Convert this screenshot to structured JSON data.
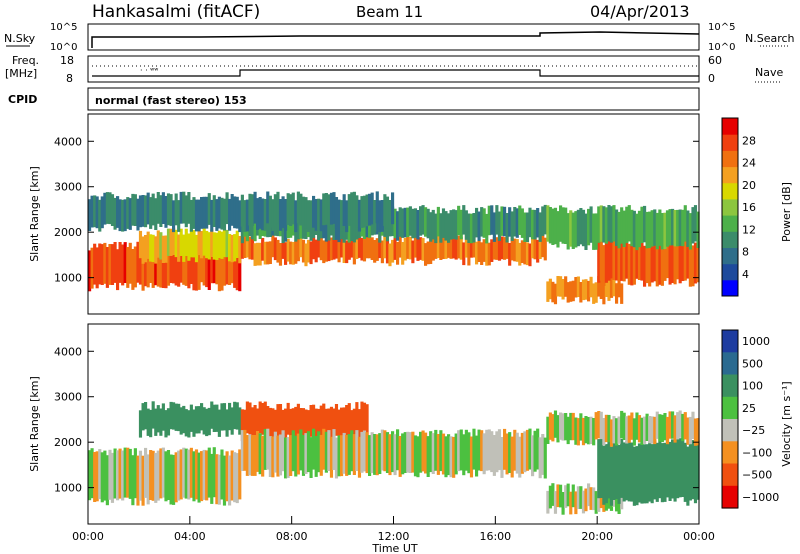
{
  "header": {
    "station": "Hankasalmi (fitACF)",
    "beam": "Beam 11",
    "date": "04/Apr/2013"
  },
  "top_panel": {
    "nsky_label": "N.Sky",
    "nsky_ticks": [
      "10^5",
      "10^0"
    ],
    "nsearch_label": "N.Search",
    "nsearch_ticks": [
      "10^5",
      "10^0"
    ],
    "freq_label_1": "Freq.",
    "freq_label_2": "[MHz]",
    "freq_ticks": [
      "18",
      "8"
    ],
    "nave_label": "Nave",
    "nave_ticks": [
      "60",
      "0"
    ],
    "cpid_label": "CPID",
    "cpid_value": "normal (fast stereo) 153"
  },
  "colors": {
    "power": [
      "#0000ff",
      "#1e4a9c",
      "#2f6e8a",
      "#3b8c6a",
      "#4db04a",
      "#8cc63f",
      "#d8d800",
      "#f4a020",
      "#f07010",
      "#f04010",
      "#e60000"
    ],
    "velocity": [
      "#e60000",
      "#f05010",
      "#f49020",
      "#c0c0b8",
      "#4cc040",
      "#3a9060",
      "#2a6a90",
      "#1e3ca0"
    ]
  },
  "chart_data": [
    {
      "type": "heatmap",
      "name": "Power",
      "ylabel": "Slant Range [km]",
      "yticks": [
        "4000",
        "3000",
        "2000",
        "1000"
      ],
      "ylim": [
        200,
        4600
      ],
      "xlim": [
        0,
        24
      ],
      "colorbar_label": "Power [dB]",
      "colorbar_ticks": [
        "28",
        "24",
        "20",
        "16",
        "12",
        "8",
        "4"
      ],
      "colorbar_range": [
        0,
        32
      ],
      "bands": [
        {
          "x": [
            0,
            6
          ],
          "range": [
            800,
            1700
          ],
          "level": 28
        },
        {
          "x": [
            2,
            6
          ],
          "range": [
            1400,
            2000
          ],
          "level": 20
        },
        {
          "x": [
            6,
            18
          ],
          "range": [
            1350,
            1850
          ],
          "level": 26
        },
        {
          "x": [
            6,
            18
          ],
          "range": [
            1850,
            2500
          ],
          "level": 10
        },
        {
          "x": [
            0,
            12
          ],
          "range": [
            2100,
            2800
          ],
          "level": 8
        },
        {
          "x": [
            18,
            21
          ],
          "range": [
            500,
            950
          ],
          "level": 24
        },
        {
          "x": [
            20,
            24
          ],
          "range": [
            900,
            1800
          ],
          "level": 27
        },
        {
          "x": [
            18,
            24
          ],
          "range": [
            1700,
            2500
          ],
          "level": 12
        }
      ]
    },
    {
      "type": "heatmap",
      "name": "Velocity",
      "ylabel": "Slant Range [km]",
      "yticks": [
        "4000",
        "3000",
        "2000",
        "1000"
      ],
      "ylim": [
        200,
        4600
      ],
      "xlim": [
        0,
        24
      ],
      "xticks": [
        "00:00",
        "04:00",
        "08:00",
        "12:00",
        "16:00",
        "20:00",
        "00:00"
      ],
      "xlabel": "Time UT",
      "colorbar_label": "Velocity [m s⁻¹]",
      "colorbar_ticks": [
        "1000",
        "500",
        "100",
        "25",
        "−25",
        "−100",
        "−500",
        "−1000"
      ],
      "bands": [
        {
          "x": [
            0,
            6
          ],
          "range": [
            700,
            1800
          ],
          "velocity": 0
        },
        {
          "x": [
            2,
            6
          ],
          "range": [
            2200,
            2800
          ],
          "velocity": 200
        },
        {
          "x": [
            6,
            11
          ],
          "range": [
            2100,
            2800
          ],
          "velocity": -400
        },
        {
          "x": [
            6,
            18
          ],
          "range": [
            1300,
            2200
          ],
          "velocity": 0
        },
        {
          "x": [
            18,
            21
          ],
          "range": [
            500,
            1000
          ],
          "velocity": 0
        },
        {
          "x": [
            20,
            24
          ],
          "range": [
            700,
            2000
          ],
          "velocity": 400
        },
        {
          "x": [
            18,
            24
          ],
          "range": [
            2000,
            2600
          ],
          "velocity": 0
        }
      ]
    }
  ]
}
